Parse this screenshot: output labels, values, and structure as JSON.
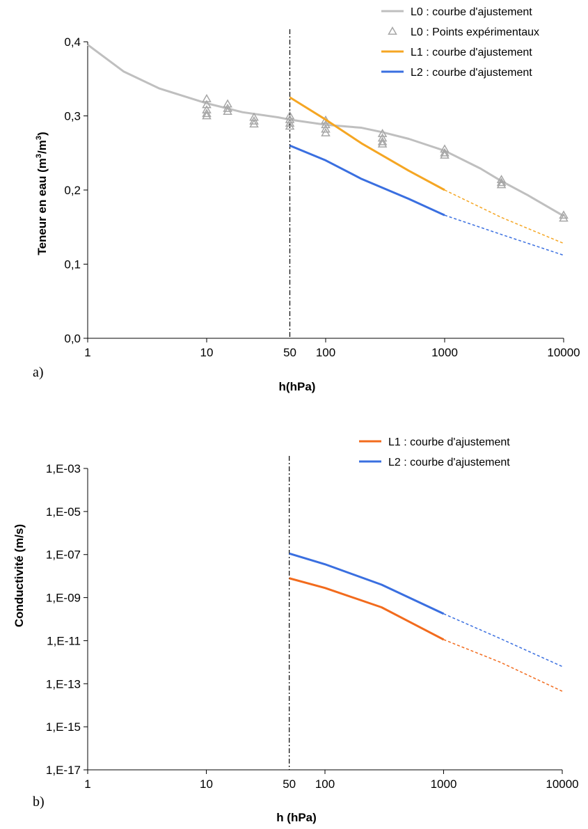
{
  "chart_data": [
    {
      "panel_label": "a)",
      "type": "line",
      "xlabel": "h(hPa)",
      "ylabel_main": "Teneur en eau (m",
      "ylabel_sup1": "3",
      "ylabel_mid": "/m",
      "ylabel_sup2": "3",
      "ylabel_end": ")",
      "x_scale": "log",
      "xlim": [
        1,
        10000
      ],
      "x_ticks": [
        1,
        10,
        50,
        100,
        1000,
        10000
      ],
      "x_tick_labels": [
        "1",
        "10",
        "50",
        "100",
        "1000",
        "10000"
      ],
      "ylim": [
        0,
        0.4
      ],
      "y_ticks": [
        0,
        0.1,
        0.2,
        0.3,
        0.4
      ],
      "y_tick_labels": [
        "0,0",
        "0,1",
        "0,2",
        "0,3",
        "0,4"
      ],
      "vline_x": 50,
      "legend_position": "top-right",
      "series": [
        {
          "name": "L0 : courbe d'ajustement",
          "color": "#bfbfbf",
          "style": "solid",
          "points": [
            [
              1,
              0.396
            ],
            [
              2,
              0.36
            ],
            [
              4,
              0.337
            ],
            [
              10,
              0.317
            ],
            [
              20,
              0.305
            ],
            [
              40,
              0.298
            ],
            [
              50,
              0.295
            ],
            [
              100,
              0.288
            ],
            [
              200,
              0.284
            ],
            [
              300,
              0.278
            ],
            [
              500,
              0.269
            ],
            [
              1000,
              0.253
            ],
            [
              2000,
              0.229
            ],
            [
              3000,
              0.212
            ],
            [
              5000,
              0.193
            ],
            [
              10000,
              0.165
            ]
          ]
        },
        {
          "name": "L0 : Points expérimentaux",
          "color": "#a6a6a6",
          "style": "markers",
          "points": [
            [
              10,
              0.323
            ],
            [
              10,
              0.315
            ],
            [
              10,
              0.308
            ],
            [
              10,
              0.303
            ],
            [
              10,
              0.3
            ],
            [
              15,
              0.316
            ],
            [
              15,
              0.31
            ],
            [
              15,
              0.306
            ],
            [
              25,
              0.298
            ],
            [
              25,
              0.293
            ],
            [
              25,
              0.289
            ],
            [
              50,
              0.3
            ],
            [
              50,
              0.295
            ],
            [
              50,
              0.29
            ],
            [
              50,
              0.286
            ],
            [
              100,
              0.294
            ],
            [
              100,
              0.288
            ],
            [
              100,
              0.282
            ],
            [
              100,
              0.277
            ],
            [
              300,
              0.276
            ],
            [
              300,
              0.27
            ],
            [
              300,
              0.265
            ],
            [
              300,
              0.262
            ],
            [
              1000,
              0.255
            ],
            [
              1000,
              0.25
            ],
            [
              1000,
              0.247
            ],
            [
              3000,
              0.214
            ],
            [
              3000,
              0.21
            ],
            [
              3000,
              0.207
            ],
            [
              10000,
              0.166
            ],
            [
              10000,
              0.162
            ]
          ]
        },
        {
          "name": "L1 : courbe d'ajustement",
          "color": "#f5a623",
          "style": "solid",
          "points": [
            [
              50,
              0.325
            ],
            [
              100,
              0.295
            ],
            [
              200,
              0.263
            ],
            [
              500,
              0.226
            ],
            [
              1000,
              0.2
            ]
          ]
        },
        {
          "name": "L1 dashed",
          "color": "#f5a623",
          "style": "dashed",
          "points": [
            [
              1000,
              0.2
            ],
            [
              3000,
              0.163
            ],
            [
              10000,
              0.128
            ]
          ]
        },
        {
          "name": "L2 : courbe d'ajustement",
          "color": "#3a6fe0",
          "style": "solid",
          "points": [
            [
              50,
              0.26
            ],
            [
              100,
              0.24
            ],
            [
              200,
              0.215
            ],
            [
              500,
              0.188
            ],
            [
              1000,
              0.166
            ]
          ]
        },
        {
          "name": "L2 dashed",
          "color": "#3a6fe0",
          "style": "dashed",
          "points": [
            [
              1000,
              0.166
            ],
            [
              3000,
              0.14
            ],
            [
              10000,
              0.112
            ]
          ]
        }
      ]
    },
    {
      "panel_label": "b)",
      "type": "line",
      "xlabel": "h (hPa)",
      "ylabel": "Conductivité (m/s)",
      "x_scale": "log",
      "y_scale": "log",
      "xlim": [
        1,
        10000
      ],
      "x_ticks": [
        1,
        10,
        50,
        100,
        1000,
        10000
      ],
      "x_tick_labels": [
        "1",
        "10",
        "50",
        "100",
        "1000",
        "10000"
      ],
      "ylim_exp": [
        -17,
        -3
      ],
      "y_ticks_exp": [
        -17,
        -15,
        -13,
        -11,
        -9,
        -7,
        -5,
        -3
      ],
      "y_tick_labels": [
        "1,E-17",
        "1,E-15",
        "1,E-13",
        "1,E-11",
        "1,E-09",
        "1,E-07",
        "1,E-05",
        "1,E-03"
      ],
      "vline_x": 50,
      "legend_position": "top-right",
      "series": [
        {
          "name": "L1 : courbe d'ajustement",
          "color": "#f26b1d",
          "style": "solid",
          "points_exp": [
            [
              50,
              -8.1
            ],
            [
              100,
              -8.55
            ],
            [
              300,
              -9.45
            ],
            [
              1000,
              -10.95
            ]
          ]
        },
        {
          "name": "L1 dashed",
          "color": "#f26b1d",
          "style": "dashed",
          "points_exp": [
            [
              1000,
              -10.95
            ],
            [
              3000,
              -12.0
            ],
            [
              10000,
              -13.35
            ]
          ]
        },
        {
          "name": "L2 : courbe d'ajustement",
          "color": "#3a6fe0",
          "style": "solid",
          "points_exp": [
            [
              50,
              -6.95
            ],
            [
              100,
              -7.45
            ],
            [
              300,
              -8.4
            ],
            [
              1000,
              -9.75
            ]
          ]
        },
        {
          "name": "L2 dashed",
          "color": "#3a6fe0",
          "style": "dashed",
          "points_exp": [
            [
              1000,
              -9.75
            ],
            [
              3000,
              -10.9
            ],
            [
              10000,
              -12.2
            ]
          ]
        }
      ]
    }
  ]
}
